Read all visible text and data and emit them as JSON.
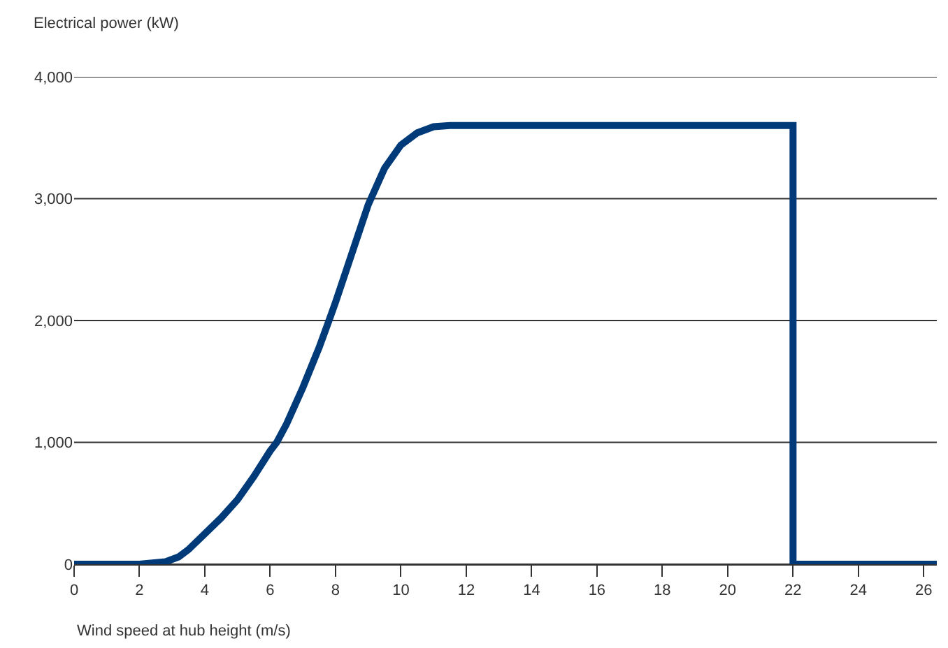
{
  "chart_data": {
    "type": "line",
    "xlabel": "Wind speed at hub height (m/s)",
    "ylabel": "Electrical power (kW)",
    "series": [
      {
        "color": "#003a78",
        "x": [
          0,
          2,
          2.8,
          3.2,
          3.5,
          4,
          4.5,
          5,
          5.5,
          6,
          6.2,
          6.5,
          7,
          7.5,
          7.8,
          8,
          8.5,
          9,
          9.5,
          10,
          10.5,
          11,
          11.5,
          12,
          22,
          22,
          24,
          26.4
        ],
        "values": [
          0,
          0,
          20,
          60,
          120,
          250,
          380,
          530,
          720,
          930,
          1000,
          1150,
          1450,
          1780,
          2000,
          2150,
          2550,
          2950,
          3250,
          3440,
          3540,
          3590,
          3600,
          3600,
          3600,
          0,
          0,
          0
        ]
      }
    ],
    "xlim": [
      0,
      26.4
    ],
    "xticks": [
      0,
      2,
      4,
      6,
      8,
      10,
      12,
      14,
      16,
      18,
      20,
      22,
      24,
      26
    ],
    "ylim": [
      0,
      4000
    ],
    "yticks": [
      {
        "value": 0,
        "label": "0"
      },
      {
        "value": 1000,
        "label": "1,000"
      },
      {
        "value": 2000,
        "label": "2,000"
      },
      {
        "value": 3000,
        "label": "3,000"
      },
      {
        "value": 4000,
        "label": "4,000"
      }
    ],
    "grid": "y",
    "marker": "none",
    "line_style": "solid"
  }
}
